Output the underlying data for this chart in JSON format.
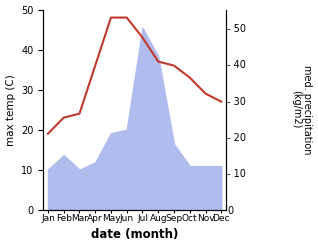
{
  "months": [
    "Jan",
    "Feb",
    "Mar",
    "Apr",
    "May",
    "Jun",
    "Jul",
    "Aug",
    "Sep",
    "Oct",
    "Nov",
    "Dec"
  ],
  "temp": [
    19,
    23,
    24,
    36,
    48,
    48,
    43,
    37,
    36,
    33,
    29,
    27
  ],
  "precip": [
    11,
    15,
    11,
    13,
    21,
    22,
    50,
    42,
    18,
    12,
    12,
    12
  ],
  "temp_color": "#c0392b",
  "precip_color_fill": "#b0bbee",
  "left_ylim": [
    0,
    50
  ],
  "right_ylim": [
    0,
    55
  ],
  "right_yticks": [
    0,
    10,
    20,
    30,
    40,
    50
  ],
  "left_ylabel": "max temp (C)",
  "right_ylabel": "med. precipitation\n(kg/m2)",
  "xlabel": "date (month)",
  "bg_color": "#ffffff"
}
